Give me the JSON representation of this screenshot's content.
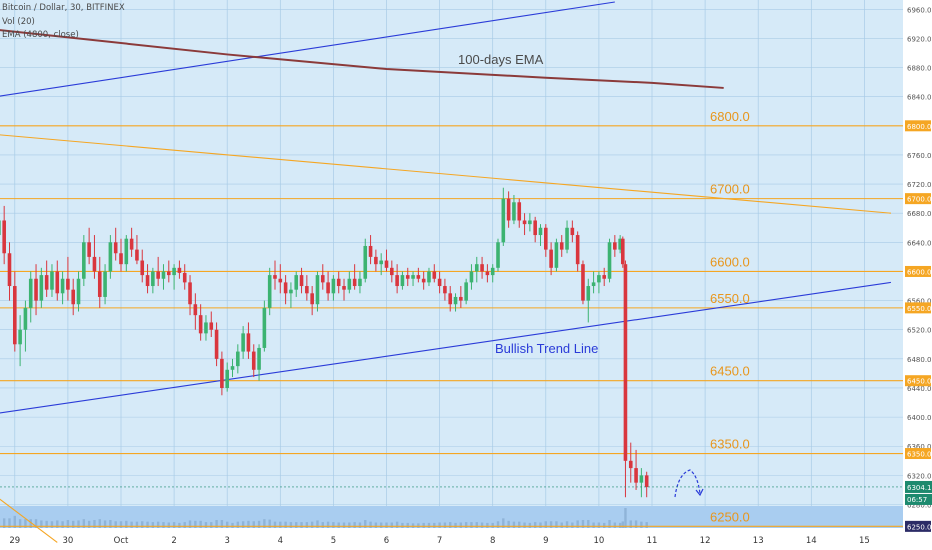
{
  "header": {
    "symbol_line": "Bitcoin / Dollar, 30, BITFINEX",
    "vol_line": "Vol (20)",
    "ema_line": "EMA (4800, close)"
  },
  "colors": {
    "background": "#d6eaf8",
    "grid": "#a8cbe6",
    "level_line": "#f5a623",
    "level_text": "#e8961c",
    "trend_line": "#2a3bd8",
    "ema_line": "#8b3a3a",
    "candle_up": "#3cb371",
    "candle_down": "#d9363e",
    "price_tag": "#2b2b66",
    "volume_band": "#a9cdf0"
  },
  "chart_data": {
    "type": "candlestick",
    "symbol": "Bitcoin / Dollar",
    "interval": "30",
    "exchange": "BITFINEX",
    "y_range": [
      6245,
      6970
    ],
    "x_tick_labels": [
      "29",
      "30",
      "Oct",
      "2",
      "3",
      "4",
      "5",
      "6",
      "7",
      "8",
      "9",
      "10",
      "11",
      "12",
      "13",
      "14",
      "15"
    ],
    "x_tick_days": [
      -2,
      -1,
      0,
      1,
      2,
      3,
      4,
      5,
      6,
      7,
      8,
      9,
      10,
      11,
      12,
      13,
      14
    ],
    "y_ticks": [
      6960,
      6920,
      6880,
      6840,
      6800,
      6760,
      6720,
      6700,
      6680,
      6640,
      6600,
      6560,
      6550,
      6520,
      6480,
      6450,
      6440,
      6400,
      6360,
      6350,
      6320,
      6280,
      6250
    ],
    "levels": [
      {
        "value": 6800,
        "label": "6800.0",
        "tag": "6800.0"
      },
      {
        "value": 6700,
        "label": "6700.0",
        "tag": "6700.0"
      },
      {
        "value": 6600,
        "label": "6600.0",
        "tag": "6600.0"
      },
      {
        "value": 6550,
        "label": "6550.0",
        "tag": "6550.0"
      },
      {
        "value": 6450,
        "label": "6450.0",
        "tag": "6450.0"
      },
      {
        "value": 6350,
        "label": "6350.0",
        "tag": "6350.0"
      },
      {
        "value": 6250,
        "label": "6250.0",
        "tag": "6250.0"
      }
    ],
    "last_price": {
      "value": 6304.1,
      "label": "6304.1",
      "countdown": "06:57"
    },
    "annotations": {
      "ema_label": "100-days EMA",
      "trend_label": "Bullish Trend Line"
    },
    "trend_lines": [
      {
        "name": "upper-channel-line",
        "points": [
          [
            -2.35,
            6840
          ],
          [
            9.3,
            6970
          ]
        ]
      },
      {
        "name": "bullish-trend-line",
        "points": [
          [
            -2.35,
            6405
          ],
          [
            14.5,
            6585
          ]
        ]
      },
      {
        "name": "descending-resistance-line",
        "points": [
          [
            -2.35,
            6788
          ],
          [
            14.5,
            6680
          ]
        ]
      },
      {
        "name": "lower-falling-line",
        "points": [
          [
            -2.35,
            6291
          ],
          [
            -1.2,
            6228
          ]
        ]
      }
    ],
    "ema_line": {
      "name": "100-days EMA",
      "points": [
        [
          -2.35,
          6932
        ],
        [
          2.0,
          6898
        ],
        [
          5.0,
          6878
        ],
        [
          8.0,
          6866
        ],
        [
          10.0,
          6859
        ],
        [
          11.35,
          6852
        ]
      ]
    },
    "candles": [
      {
        "x": -2.3,
        "o": 6650,
        "h": 6685,
        "l": 6620,
        "c": 6670
      },
      {
        "x": -2.2,
        "o": 6670,
        "h": 6690,
        "l": 6610,
        "c": 6625
      },
      {
        "x": -2.1,
        "o": 6625,
        "h": 6640,
        "l": 6560,
        "c": 6580
      },
      {
        "x": -2.0,
        "o": 6580,
        "h": 6600,
        "l": 6490,
        "c": 6500
      },
      {
        "x": -1.9,
        "o": 6500,
        "h": 6540,
        "l": 6470,
        "c": 6520
      },
      {
        "x": -1.8,
        "o": 6520,
        "h": 6560,
        "l": 6490,
        "c": 6550
      },
      {
        "x": -1.7,
        "o": 6550,
        "h": 6600,
        "l": 6530,
        "c": 6590
      },
      {
        "x": -1.6,
        "o": 6590,
        "h": 6610,
        "l": 6540,
        "c": 6560
      },
      {
        "x": -1.5,
        "o": 6560,
        "h": 6605,
        "l": 6550,
        "c": 6595
      },
      {
        "x": -1.4,
        "o": 6595,
        "h": 6615,
        "l": 6565,
        "c": 6575
      },
      {
        "x": -1.3,
        "o": 6575,
        "h": 6610,
        "l": 6565,
        "c": 6600
      },
      {
        "x": -1.2,
        "o": 6600,
        "h": 6615,
        "l": 6560,
        "c": 6570
      },
      {
        "x": -1.1,
        "o": 6570,
        "h": 6600,
        "l": 6555,
        "c": 6590
      },
      {
        "x": -1.0,
        "o": 6590,
        "h": 6620,
        "l": 6560,
        "c": 6575
      },
      {
        "x": -0.9,
        "o": 6575,
        "h": 6590,
        "l": 6540,
        "c": 6555
      },
      {
        "x": -0.8,
        "o": 6555,
        "h": 6600,
        "l": 6545,
        "c": 6590
      },
      {
        "x": -0.7,
        "o": 6590,
        "h": 6650,
        "l": 6580,
        "c": 6640
      },
      {
        "x": -0.6,
        "o": 6640,
        "h": 6660,
        "l": 6610,
        "c": 6620
      },
      {
        "x": -0.5,
        "o": 6620,
        "h": 6650,
        "l": 6590,
        "c": 6600
      },
      {
        "x": -0.4,
        "o": 6600,
        "h": 6620,
        "l": 6550,
        "c": 6565
      },
      {
        "x": -0.3,
        "o": 6565,
        "h": 6610,
        "l": 6555,
        "c": 6600
      },
      {
        "x": -0.2,
        "o": 6600,
        "h": 6650,
        "l": 6590,
        "c": 6640
      },
      {
        "x": -0.1,
        "o": 6640,
        "h": 6660,
        "l": 6615,
        "c": 6625
      },
      {
        "x": 0.0,
        "o": 6625,
        "h": 6645,
        "l": 6600,
        "c": 6610
      },
      {
        "x": 0.1,
        "o": 6610,
        "h": 6650,
        "l": 6600,
        "c": 6645
      },
      {
        "x": 0.2,
        "o": 6645,
        "h": 6660,
        "l": 6620,
        "c": 6630
      },
      {
        "x": 0.3,
        "o": 6630,
        "h": 6650,
        "l": 6610,
        "c": 6615
      },
      {
        "x": 0.4,
        "o": 6615,
        "h": 6630,
        "l": 6585,
        "c": 6595
      },
      {
        "x": 0.5,
        "o": 6595,
        "h": 6610,
        "l": 6570,
        "c": 6580
      },
      {
        "x": 0.6,
        "o": 6580,
        "h": 6605,
        "l": 6570,
        "c": 6600
      },
      {
        "x": 0.7,
        "o": 6600,
        "h": 6620,
        "l": 6580,
        "c": 6590
      },
      {
        "x": 0.8,
        "o": 6590,
        "h": 6610,
        "l": 6575,
        "c": 6600
      },
      {
        "x": 0.9,
        "o": 6600,
        "h": 6615,
        "l": 6585,
        "c": 6595
      },
      {
        "x": 1.0,
        "o": 6595,
        "h": 6610,
        "l": 6575,
        "c": 6605
      },
      {
        "x": 1.1,
        "o": 6605,
        "h": 6615,
        "l": 6590,
        "c": 6598
      },
      {
        "x": 1.2,
        "o": 6598,
        "h": 6610,
        "l": 6575,
        "c": 6585
      },
      {
        "x": 1.3,
        "o": 6585,
        "h": 6595,
        "l": 6540,
        "c": 6555
      },
      {
        "x": 1.4,
        "o": 6555,
        "h": 6570,
        "l": 6520,
        "c": 6540
      },
      {
        "x": 1.5,
        "o": 6540,
        "h": 6555,
        "l": 6505,
        "c": 6515
      },
      {
        "x": 1.6,
        "o": 6515,
        "h": 6540,
        "l": 6505,
        "c": 6530
      },
      {
        "x": 1.7,
        "o": 6530,
        "h": 6545,
        "l": 6510,
        "c": 6520
      },
      {
        "x": 1.8,
        "o": 6520,
        "h": 6530,
        "l": 6470,
        "c": 6480
      },
      {
        "x": 1.9,
        "o": 6480,
        "h": 6490,
        "l": 6430,
        "c": 6440
      },
      {
        "x": 2.0,
        "o": 6440,
        "h": 6475,
        "l": 6435,
        "c": 6465
      },
      {
        "x": 2.1,
        "o": 6465,
        "h": 6480,
        "l": 6455,
        "c": 6470
      },
      {
        "x": 2.2,
        "o": 6470,
        "h": 6500,
        "l": 6460,
        "c": 6490
      },
      {
        "x": 2.3,
        "o": 6490,
        "h": 6525,
        "l": 6480,
        "c": 6515
      },
      {
        "x": 2.4,
        "o": 6515,
        "h": 6530,
        "l": 6480,
        "c": 6490
      },
      {
        "x": 2.5,
        "o": 6490,
        "h": 6500,
        "l": 6455,
        "c": 6465
      },
      {
        "x": 2.6,
        "o": 6465,
        "h": 6500,
        "l": 6450,
        "c": 6495
      },
      {
        "x": 2.7,
        "o": 6495,
        "h": 6560,
        "l": 6490,
        "c": 6550
      },
      {
        "x": 2.8,
        "o": 6550,
        "h": 6605,
        "l": 6540,
        "c": 6595
      },
      {
        "x": 2.9,
        "o": 6595,
        "h": 6615,
        "l": 6575,
        "c": 6590
      },
      {
        "x": 3.0,
        "o": 6590,
        "h": 6610,
        "l": 6570,
        "c": 6585
      },
      {
        "x": 3.1,
        "o": 6585,
        "h": 6595,
        "l": 6555,
        "c": 6570
      },
      {
        "x": 3.2,
        "o": 6570,
        "h": 6585,
        "l": 6550,
        "c": 6575
      },
      {
        "x": 3.3,
        "o": 6575,
        "h": 6600,
        "l": 6565,
        "c": 6595
      },
      {
        "x": 3.4,
        "o": 6595,
        "h": 6605,
        "l": 6570,
        "c": 6580
      },
      {
        "x": 3.5,
        "o": 6580,
        "h": 6595,
        "l": 6560,
        "c": 6570
      },
      {
        "x": 3.6,
        "o": 6570,
        "h": 6580,
        "l": 6540,
        "c": 6555
      },
      {
        "x": 3.7,
        "o": 6555,
        "h": 6600,
        "l": 6545,
        "c": 6595
      },
      {
        "x": 3.8,
        "o": 6595,
        "h": 6610,
        "l": 6575,
        "c": 6585
      },
      {
        "x": 3.9,
        "o": 6585,
        "h": 6600,
        "l": 6560,
        "c": 6570
      },
      {
        "x": 4.0,
        "o": 6570,
        "h": 6595,
        "l": 6560,
        "c": 6590
      },
      {
        "x": 4.1,
        "o": 6590,
        "h": 6600,
        "l": 6570,
        "c": 6580
      },
      {
        "x": 4.2,
        "o": 6580,
        "h": 6590,
        "l": 6560,
        "c": 6575
      },
      {
        "x": 4.3,
        "o": 6575,
        "h": 6600,
        "l": 6570,
        "c": 6590
      },
      {
        "x": 4.4,
        "o": 6590,
        "h": 6610,
        "l": 6575,
        "c": 6580
      },
      {
        "x": 4.5,
        "o": 6580,
        "h": 6600,
        "l": 6570,
        "c": 6590
      },
      {
        "x": 4.6,
        "o": 6590,
        "h": 6645,
        "l": 6585,
        "c": 6635
      },
      {
        "x": 4.7,
        "o": 6635,
        "h": 6650,
        "l": 6610,
        "c": 6620
      },
      {
        "x": 4.8,
        "o": 6620,
        "h": 6630,
        "l": 6600,
        "c": 6610
      },
      {
        "x": 4.9,
        "o": 6610,
        "h": 6625,
        "l": 6595,
        "c": 6615
      },
      {
        "x": 5.0,
        "o": 6615,
        "h": 6630,
        "l": 6600,
        "c": 6605
      },
      {
        "x": 5.1,
        "o": 6605,
        "h": 6615,
        "l": 6585,
        "c": 6595
      },
      {
        "x": 5.2,
        "o": 6595,
        "h": 6610,
        "l": 6570,
        "c": 6580
      },
      {
        "x": 5.3,
        "o": 6580,
        "h": 6600,
        "l": 6575,
        "c": 6595
      },
      {
        "x": 5.4,
        "o": 6595,
        "h": 6605,
        "l": 6580,
        "c": 6590
      },
      {
        "x": 5.5,
        "o": 6590,
        "h": 6600,
        "l": 6580,
        "c": 6595
      },
      {
        "x": 5.6,
        "o": 6595,
        "h": 6605,
        "l": 6585,
        "c": 6590
      },
      {
        "x": 5.7,
        "o": 6590,
        "h": 6600,
        "l": 6575,
        "c": 6585
      },
      {
        "x": 5.8,
        "o": 6585,
        "h": 6605,
        "l": 6580,
        "c": 6600
      },
      {
        "x": 5.9,
        "o": 6600,
        "h": 6610,
        "l": 6585,
        "c": 6590
      },
      {
        "x": 6.0,
        "o": 6590,
        "h": 6600,
        "l": 6570,
        "c": 6580
      },
      {
        "x": 6.1,
        "o": 6580,
        "h": 6590,
        "l": 6560,
        "c": 6570
      },
      {
        "x": 6.2,
        "o": 6570,
        "h": 6580,
        "l": 6545,
        "c": 6555
      },
      {
        "x": 6.3,
        "o": 6555,
        "h": 6570,
        "l": 6545,
        "c": 6565
      },
      {
        "x": 6.4,
        "o": 6565,
        "h": 6580,
        "l": 6550,
        "c": 6560
      },
      {
        "x": 6.5,
        "o": 6560,
        "h": 6590,
        "l": 6555,
        "c": 6585
      },
      {
        "x": 6.6,
        "o": 6585,
        "h": 6610,
        "l": 6575,
        "c": 6600
      },
      {
        "x": 6.7,
        "o": 6600,
        "h": 6620,
        "l": 6585,
        "c": 6610
      },
      {
        "x": 6.8,
        "o": 6610,
        "h": 6620,
        "l": 6590,
        "c": 6600
      },
      {
        "x": 6.9,
        "o": 6600,
        "h": 6610,
        "l": 6585,
        "c": 6595
      },
      {
        "x": 7.0,
        "o": 6595,
        "h": 6610,
        "l": 6585,
        "c": 6605
      },
      {
        "x": 7.1,
        "o": 6605,
        "h": 6645,
        "l": 6600,
        "c": 6640
      },
      {
        "x": 7.2,
        "o": 6640,
        "h": 6715,
        "l": 6635,
        "c": 6700
      },
      {
        "x": 7.3,
        "o": 6700,
        "h": 6710,
        "l": 6660,
        "c": 6670
      },
      {
        "x": 7.4,
        "o": 6670,
        "h": 6705,
        "l": 6665,
        "c": 6695
      },
      {
        "x": 7.5,
        "o": 6695,
        "h": 6700,
        "l": 6660,
        "c": 6670
      },
      {
        "x": 7.6,
        "o": 6670,
        "h": 6680,
        "l": 6650,
        "c": 6665
      },
      {
        "x": 7.7,
        "o": 6665,
        "h": 6680,
        "l": 6655,
        "c": 6670
      },
      {
        "x": 7.8,
        "o": 6670,
        "h": 6675,
        "l": 6640,
        "c": 6650
      },
      {
        "x": 7.9,
        "o": 6650,
        "h": 6665,
        "l": 6635,
        "c": 6660
      },
      {
        "x": 8.0,
        "o": 6660,
        "h": 6665,
        "l": 6620,
        "c": 6630
      },
      {
        "x": 8.1,
        "o": 6630,
        "h": 6640,
        "l": 6595,
        "c": 6605
      },
      {
        "x": 8.2,
        "o": 6605,
        "h": 6645,
        "l": 6600,
        "c": 6640
      },
      {
        "x": 8.3,
        "o": 6640,
        "h": 6650,
        "l": 6620,
        "c": 6630
      },
      {
        "x": 8.4,
        "o": 6630,
        "h": 6670,
        "l": 6625,
        "c": 6660
      },
      {
        "x": 8.5,
        "o": 6660,
        "h": 6670,
        "l": 6640,
        "c": 6650
      },
      {
        "x": 8.6,
        "o": 6650,
        "h": 6655,
        "l": 6600,
        "c": 6610
      },
      {
        "x": 8.7,
        "o": 6610,
        "h": 6615,
        "l": 6555,
        "c": 6560
      },
      {
        "x": 8.8,
        "o": 6560,
        "h": 6590,
        "l": 6530,
        "c": 6580
      },
      {
        "x": 8.9,
        "o": 6580,
        "h": 6600,
        "l": 6570,
        "c": 6585
      },
      {
        "x": 9.0,
        "o": 6585,
        "h": 6600,
        "l": 6570,
        "c": 6595
      },
      {
        "x": 9.1,
        "o": 6595,
        "h": 6605,
        "l": 6580,
        "c": 6590
      },
      {
        "x": 9.2,
        "o": 6590,
        "h": 6645,
        "l": 6585,
        "c": 6640
      },
      {
        "x": 9.3,
        "o": 6640,
        "h": 6650,
        "l": 6620,
        "c": 6630
      },
      {
        "x": 9.4,
        "o": 6630,
        "h": 6650,
        "l": 6625,
        "c": 6645
      },
      {
        "x": 9.45,
        "o": 6645,
        "h": 6648,
        "l": 6605,
        "c": 6610
      },
      {
        "x": 9.5,
        "o": 6610,
        "h": 6615,
        "l": 6290,
        "c": 6340
      },
      {
        "x": 9.6,
        "o": 6340,
        "h": 6365,
        "l": 6310,
        "c": 6330
      },
      {
        "x": 9.7,
        "o": 6330,
        "h": 6355,
        "l": 6300,
        "c": 6310
      },
      {
        "x": 9.8,
        "o": 6310,
        "h": 6330,
        "l": 6290,
        "c": 6320
      },
      {
        "x": 9.9,
        "o": 6320,
        "h": 6325,
        "l": 6290,
        "c": 6304
      }
    ]
  }
}
